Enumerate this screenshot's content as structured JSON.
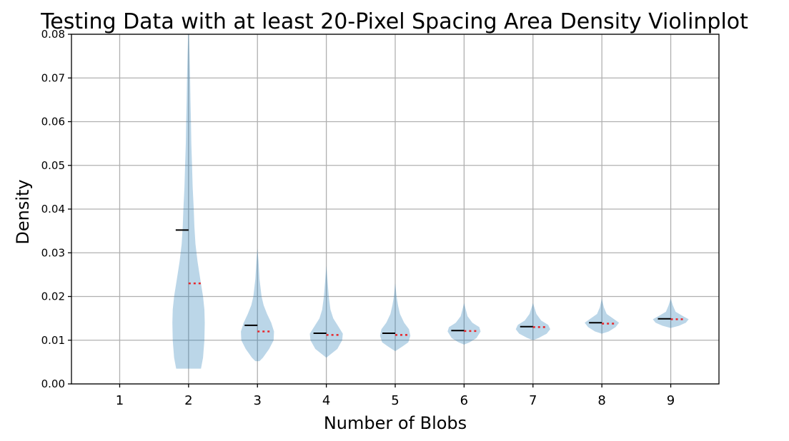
{
  "chart_data": {
    "type": "violin",
    "title": "Testing Data with at least 20-Pixel Spacing Area Density Violinplot",
    "xlabel": "Number of Blobs",
    "ylabel": "Density",
    "xlim": [
      0.3,
      9.7
    ],
    "ylim": [
      0,
      0.08
    ],
    "x_ticks": [
      "1",
      "2",
      "3",
      "4",
      "5",
      "6",
      "7",
      "8",
      "9"
    ],
    "y_ticks": [
      "0.00",
      "0.01",
      "0.02",
      "0.03",
      "0.04",
      "0.05",
      "0.06",
      "0.07",
      "0.08"
    ],
    "grid": true,
    "colors": {
      "violin": "#1f77b4",
      "mean": "#000000",
      "median": "#e8272b"
    },
    "series": [
      {
        "x": 2,
        "min": 0.0035,
        "max": 0.082,
        "mean": 0.0352,
        "median": 0.023,
        "profile": [
          [
            0.0035,
            0.18
          ],
          [
            0.006,
            0.21
          ],
          [
            0.01,
            0.23
          ],
          [
            0.014,
            0.235
          ],
          [
            0.017,
            0.23
          ],
          [
            0.02,
            0.21
          ],
          [
            0.024,
            0.17
          ],
          [
            0.028,
            0.13
          ],
          [
            0.032,
            0.1
          ],
          [
            0.036,
            0.085
          ],
          [
            0.04,
            0.075
          ],
          [
            0.045,
            0.06
          ],
          [
            0.05,
            0.05
          ],
          [
            0.055,
            0.04
          ],
          [
            0.06,
            0.035
          ],
          [
            0.065,
            0.028
          ],
          [
            0.07,
            0.022
          ],
          [
            0.075,
            0.015
          ],
          [
            0.08,
            0.006
          ],
          [
            0.082,
            0.0
          ]
        ]
      },
      {
        "x": 3,
        "min": 0.0052,
        "max": 0.031,
        "mean": 0.0134,
        "median": 0.012,
        "profile": [
          [
            0.0052,
            0.03
          ],
          [
            0.006,
            0.08
          ],
          [
            0.008,
            0.17
          ],
          [
            0.01,
            0.235
          ],
          [
            0.012,
            0.24
          ],
          [
            0.014,
            0.2
          ],
          [
            0.016,
            0.14
          ],
          [
            0.018,
            0.09
          ],
          [
            0.02,
            0.06
          ],
          [
            0.024,
            0.03
          ],
          [
            0.028,
            0.015
          ],
          [
            0.031,
            0.0
          ]
        ]
      },
      {
        "x": 4,
        "min": 0.006,
        "max": 0.027,
        "mean": 0.0116,
        "median": 0.0112,
        "profile": [
          [
            0.006,
            0.0
          ],
          [
            0.007,
            0.08
          ],
          [
            0.008,
            0.16
          ],
          [
            0.01,
            0.23
          ],
          [
            0.0115,
            0.24
          ],
          [
            0.013,
            0.18
          ],
          [
            0.015,
            0.1
          ],
          [
            0.017,
            0.06
          ],
          [
            0.02,
            0.035
          ],
          [
            0.024,
            0.015
          ],
          [
            0.027,
            0.0
          ]
        ]
      },
      {
        "x": 5,
        "min": 0.0075,
        "max": 0.023,
        "mean": 0.0116,
        "median": 0.0112,
        "profile": [
          [
            0.0075,
            0.0
          ],
          [
            0.0085,
            0.1
          ],
          [
            0.0095,
            0.19
          ],
          [
            0.011,
            0.22
          ],
          [
            0.0125,
            0.2
          ],
          [
            0.014,
            0.13
          ],
          [
            0.016,
            0.07
          ],
          [
            0.018,
            0.04
          ],
          [
            0.02,
            0.02
          ],
          [
            0.023,
            0.0
          ]
        ]
      },
      {
        "x": 6,
        "min": 0.009,
        "max": 0.0185,
        "mean": 0.0122,
        "median": 0.0121,
        "profile": [
          [
            0.009,
            0.0
          ],
          [
            0.0095,
            0.08
          ],
          [
            0.0105,
            0.18
          ],
          [
            0.012,
            0.24
          ],
          [
            0.013,
            0.22
          ],
          [
            0.014,
            0.12
          ],
          [
            0.0155,
            0.05
          ],
          [
            0.0185,
            0.0
          ]
        ]
      },
      {
        "x": 7,
        "min": 0.01,
        "max": 0.0185,
        "mean": 0.0131,
        "median": 0.013,
        "profile": [
          [
            0.01,
            0.0
          ],
          [
            0.0105,
            0.08
          ],
          [
            0.0115,
            0.2
          ],
          [
            0.0125,
            0.25
          ],
          [
            0.0135,
            0.22
          ],
          [
            0.0145,
            0.12
          ],
          [
            0.016,
            0.05
          ],
          [
            0.0185,
            0.0
          ]
        ]
      },
      {
        "x": 8,
        "min": 0.0115,
        "max": 0.0195,
        "mean": 0.014,
        "median": 0.0138,
        "profile": [
          [
            0.0115,
            0.0
          ],
          [
            0.012,
            0.1
          ],
          [
            0.013,
            0.2
          ],
          [
            0.014,
            0.25
          ],
          [
            0.015,
            0.16
          ],
          [
            0.016,
            0.07
          ],
          [
            0.0175,
            0.03
          ],
          [
            0.0195,
            0.0
          ]
        ]
      },
      {
        "x": 9,
        "min": 0.0128,
        "max": 0.0195,
        "mean": 0.0149,
        "median": 0.0148,
        "profile": [
          [
            0.0128,
            0.0
          ],
          [
            0.0133,
            0.12
          ],
          [
            0.014,
            0.22
          ],
          [
            0.0148,
            0.26
          ],
          [
            0.0155,
            0.18
          ],
          [
            0.0165,
            0.07
          ],
          [
            0.018,
            0.03
          ],
          [
            0.0195,
            0.0
          ]
        ]
      }
    ]
  }
}
